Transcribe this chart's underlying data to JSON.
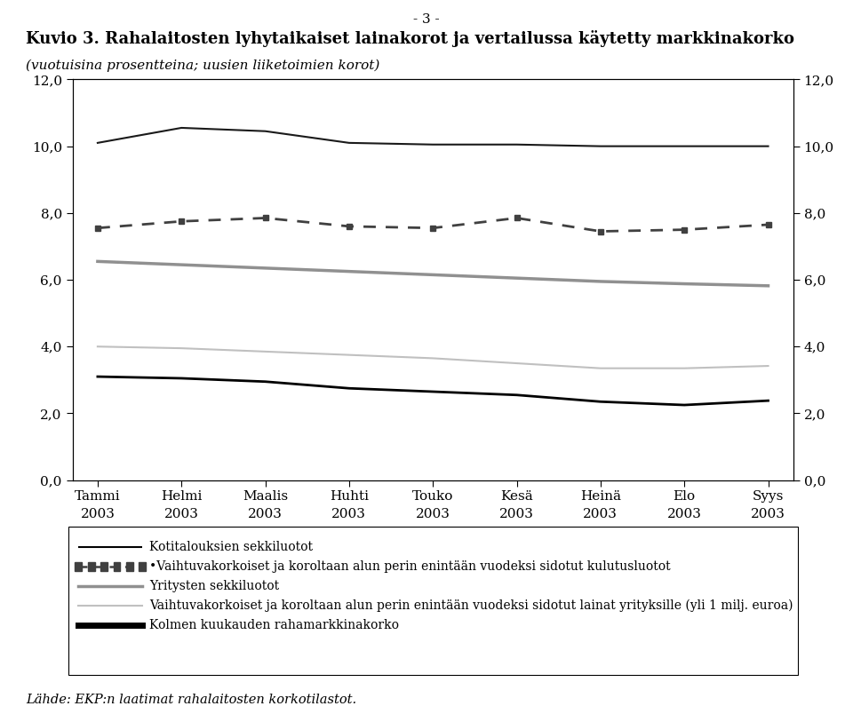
{
  "page_header": "- 3 -",
  "title_bold": "Kuvio 3. Rahalaitosten lyhytaikaiset lainakorot ja vertailussa käytetty markkinakorko",
  "title_italic": "(vuotuisina prosentteina; uusien liiketoimien korot)",
  "source_text": "Lähde: EKP:n laatimat rahalaitosten korkotilastot.",
  "x_labels_top": [
    "Tammi",
    "Helmi",
    "Maalis",
    "Huhti",
    "Touko",
    "Kesä",
    "Heinä",
    "Elo",
    "Syys"
  ],
  "ylim": [
    0.0,
    12.0
  ],
  "yticks": [
    0.0,
    2.0,
    4.0,
    6.0,
    8.0,
    10.0,
    12.0
  ],
  "series": {
    "kotitalouksien_sekkiluotot": {
      "values": [
        3.1,
        3.05,
        2.95,
        2.75,
        2.65,
        2.55,
        2.35,
        2.25,
        2.38
      ],
      "color": "#000000",
      "linewidth": 2.0,
      "label": "Kotitalouksien sekkiluotot"
    },
    "kulutusluotot": {
      "values": [
        7.55,
        7.75,
        7.85,
        7.6,
        7.55,
        7.85,
        7.45,
        7.5,
        7.65
      ],
      "color": "#404040",
      "linewidth": 2.0,
      "label": "•Vaihtuvakorkoiset ja koroltaan alun perin enintään vuodeksi sidotut kulutusluotot"
    },
    "yritysten_sekkiluotot": {
      "values": [
        6.55,
        6.45,
        6.35,
        6.25,
        6.15,
        6.05,
        5.95,
        5.88,
        5.82
      ],
      "color": "#909090",
      "linewidth": 2.5,
      "label": "Yritysten sekkiluotot"
    },
    "yrityslainat": {
      "values": [
        4.0,
        3.95,
        3.85,
        3.75,
        3.65,
        3.5,
        3.35,
        3.35,
        3.42
      ],
      "color": "#c0c0c0",
      "linewidth": 1.5,
      "label": "Vaihtuvakorkoiset ja koroltaan alun perin enintään vuodeksi sidotut lainat yrityksille (yli 1 milj. euroa)"
    },
    "rahamarkkinakorko": {
      "values": [
        10.1,
        10.55,
        10.45,
        10.1,
        10.05,
        10.05,
        10.0,
        10.0,
        10.0
      ],
      "color": "#1a1a1a",
      "linewidth": 1.5,
      "label": "Kolmen kuukauden rahamarkkinakorko"
    }
  },
  "legend_entries": [
    {
      "key": "kotitalouksien_sekkiluotot",
      "style": "solid_thin_black"
    },
    {
      "key": "kulutusluotot",
      "style": "dashed_square"
    },
    {
      "key": "yritysten_sekkiluotot",
      "style": "solid_gray"
    },
    {
      "key": "yrityslainat",
      "style": "solid_light_gray"
    },
    {
      "key": "rahamarkkinakorko",
      "style": "solid_thick_black"
    }
  ]
}
